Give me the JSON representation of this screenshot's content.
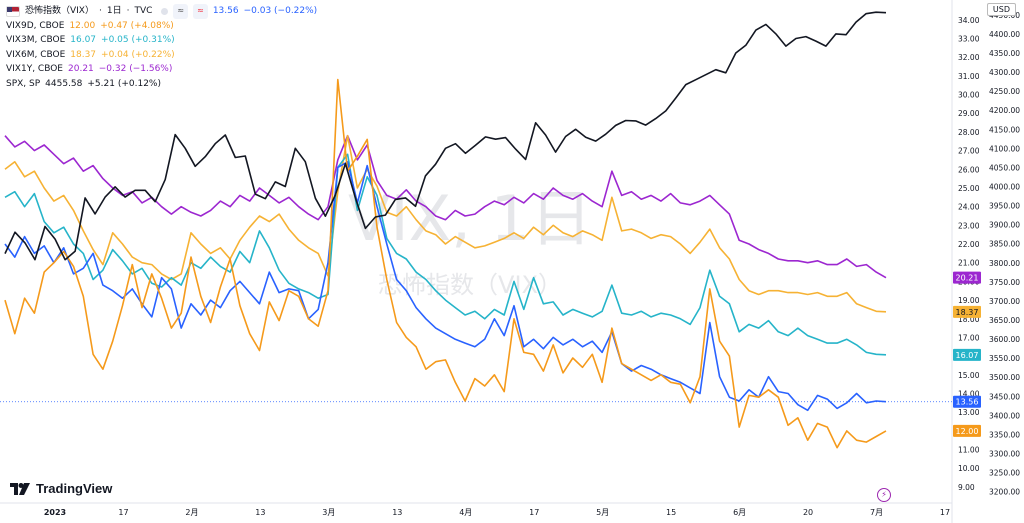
{
  "header": {
    "main": {
      "name": "恐怖指数（VIX）",
      "interval": "1日",
      "source": "TVC",
      "last": "13.56",
      "change": "−0.03 (−0.22%)",
      "color": "#2962ff"
    },
    "rows": [
      {
        "name": "VIX9D, CBOE",
        "last": "12.00",
        "change": "+0.47 (+4.08%)",
        "color": "#f59a1b"
      },
      {
        "name": "VIX3M, CBOE",
        "last": "16.07",
        "change": "+0.05 (+0.31%)",
        "color": "#26b4c9"
      },
      {
        "name": "VIX6M, CBOE",
        "last": "18.37",
        "change": "+0.04 (+0.22%)",
        "color": "#f6b234"
      },
      {
        "name": "VIX1Y, CBOE",
        "last": "20.21",
        "change": "−0.32 (−1.56%)",
        "color": "#9c27d0"
      },
      {
        "name": "SPX, SP",
        "last": "4455.58",
        "change": "+5.21 (+0.12%)",
        "color": "#131722"
      }
    ]
  },
  "watermark": {
    "line1": "VIX, 1日",
    "line2": "恐怖指数（VIX）"
  },
  "brand": "TradingView",
  "currency": "USD",
  "chart_data": {
    "type": "line",
    "x_ticks": [
      "2023",
      "17",
      "2月",
      "13",
      "3月",
      "13",
      "4月",
      "17",
      "5月",
      "15",
      "6月",
      "20",
      "7月",
      "17"
    ],
    "left_axis": {
      "ticks": [
        9.0,
        10.0,
        11.0,
        12.0,
        13.0,
        14.0,
        15.0,
        16.0,
        17.0,
        18.0,
        19.0,
        20.0,
        21.0,
        22.0,
        23.0,
        24.0,
        25.0,
        26.0,
        27.0,
        28.0,
        29.0,
        30.0,
        31.0,
        32.0,
        33.0,
        34.0
      ],
      "range": [
        8.3,
        34.9
      ]
    },
    "right_axis": {
      "ticks": [
        3200,
        3250,
        3300,
        3350,
        3400,
        3450,
        3500,
        3550,
        3600,
        3650,
        3700,
        3750,
        3800,
        3850,
        3900,
        3950,
        4000,
        4050,
        4100,
        4150,
        4200,
        4250,
        4300,
        4350,
        4400,
        4450
      ],
      "range": [
        3178,
        4481
      ]
    },
    "series": [
      {
        "name": "VIX1Y",
        "color": "#9c27d0",
        "label": "20.21",
        "values": [
          27.8,
          27.2,
          27.5,
          27.0,
          27.3,
          26.8,
          26.3,
          26.6,
          25.9,
          26.2,
          25.5,
          25.0,
          24.6,
          24.8,
          24.2,
          24.5,
          24.0,
          23.6,
          24.0,
          23.7,
          23.5,
          23.8,
          24.3,
          24.0,
          24.6,
          24.3,
          25.0,
          24.6,
          24.2,
          24.5,
          24.0,
          23.6,
          23.3,
          24.0,
          26.5,
          27.8,
          26.5,
          27.3,
          25.4,
          24.6,
          24.4,
          24.9,
          24.3,
          24.0,
          23.5,
          23.3,
          23.8,
          23.5,
          23.6,
          24.0,
          24.3,
          24.1,
          24.5,
          24.2,
          24.7,
          24.4,
          25.0,
          24.6,
          24.4,
          24.7,
          24.3,
          24.0,
          25.9,
          24.6,
          24.8,
          24.4,
          24.6,
          24.3,
          24.7,
          24.2,
          24.1,
          24.3,
          24.6,
          24.1,
          23.6,
          22.2,
          22.0,
          21.7,
          21.5,
          21.2,
          21.1,
          21.1,
          21.0,
          21.1,
          20.9,
          20.9,
          21.2,
          20.8,
          20.9,
          20.5,
          20.2
        ]
      },
      {
        "name": "VIX6M",
        "color": "#f6b234",
        "label": "18.37",
        "values": [
          26.0,
          26.4,
          25.6,
          25.9,
          25.0,
          24.3,
          24.6,
          23.8,
          22.7,
          21.7,
          20.9,
          22.6,
          22.0,
          21.3,
          21.0,
          20.9,
          20.4,
          20.1,
          20.4,
          22.6,
          22.0,
          21.5,
          21.8,
          21.2,
          22.2,
          22.9,
          23.5,
          23.2,
          23.6,
          22.8,
          22.2,
          21.8,
          21.5,
          20.3,
          24.8,
          27.8,
          25.0,
          26.0,
          25.1,
          23.7,
          23.5,
          24.0,
          23.3,
          22.7,
          22.5,
          22.0,
          22.4,
          22.1,
          21.8,
          21.9,
          22.1,
          22.3,
          22.6,
          22.3,
          22.9,
          22.5,
          23.0,
          22.6,
          22.4,
          22.7,
          22.5,
          22.2,
          24.5,
          22.7,
          22.8,
          22.6,
          22.3,
          22.5,
          22.4,
          22.0,
          21.5,
          22.1,
          22.8,
          21.8,
          21.2,
          20.1,
          19.5,
          19.3,
          19.5,
          19.5,
          19.4,
          19.4,
          19.3,
          19.4,
          19.2,
          19.2,
          19.4,
          18.8,
          18.6,
          18.4,
          18.37
        ]
      },
      {
        "name": "VIX3M",
        "color": "#26b4c9",
        "label": "16.07",
        "values": [
          24.5,
          24.8,
          24.0,
          24.7,
          23.2,
          22.6,
          22.9,
          22.0,
          21.5,
          20.1,
          20.6,
          21.7,
          21.1,
          20.4,
          20.7,
          19.9,
          19.7,
          20.2,
          19.8,
          21.0,
          20.7,
          21.3,
          20.8,
          20.5,
          21.6,
          21.0,
          22.7,
          21.8,
          20.6,
          19.9,
          19.6,
          19.4,
          19.1,
          19.3,
          26.1,
          26.8,
          23.8,
          25.6,
          24.6,
          22.3,
          21.5,
          21.2,
          20.5,
          20.1,
          19.5,
          19.0,
          18.6,
          18.2,
          18.4,
          18.0,
          18.5,
          18.2,
          20.0,
          18.5,
          20.2,
          18.8,
          18.9,
          18.2,
          18.5,
          18.3,
          18.1,
          18.4,
          19.8,
          18.3,
          18.2,
          18.4,
          18.1,
          18.3,
          18.2,
          18.0,
          17.7,
          18.6,
          20.6,
          19.2,
          18.8,
          17.3,
          17.7,
          17.5,
          17.9,
          17.3,
          17.1,
          17.5,
          17.1,
          16.9,
          16.7,
          16.7,
          16.9,
          16.6,
          16.2,
          16.1,
          16.07
        ]
      },
      {
        "name": "VIX",
        "color": "#2962ff",
        "label": "13.56",
        "values": [
          22.0,
          21.3,
          22.4,
          21.5,
          21.9,
          21.0,
          21.8,
          20.4,
          20.7,
          21.5,
          19.8,
          19.5,
          19.1,
          19.6,
          18.8,
          18.1,
          20.2,
          19.6,
          17.5,
          18.8,
          18.2,
          19.0,
          18.6,
          19.5,
          20.0,
          19.4,
          18.8,
          20.5,
          19.4,
          19.6,
          19.5,
          18.0,
          18.5,
          21.0,
          26.1,
          26.4,
          24.2,
          26.2,
          24.0,
          22.0,
          20.1,
          19.5,
          18.6,
          18.0,
          17.5,
          17.2,
          16.9,
          16.7,
          16.5,
          16.9,
          18.0,
          17.1,
          18.7,
          16.5,
          16.9,
          16.4,
          17.0,
          16.6,
          16.9,
          16.5,
          16.8,
          16.2,
          17.3,
          15.6,
          15.2,
          15.5,
          15.3,
          15.0,
          14.8,
          14.6,
          14.3,
          14.0,
          17.8,
          14.9,
          13.8,
          13.6,
          14.2,
          13.8,
          14.9,
          14.1,
          14.0,
          13.4,
          13.1,
          13.9,
          13.7,
          13.2,
          13.5,
          14.0,
          13.5,
          13.6,
          13.56
        ]
      },
      {
        "name": "VIX9D",
        "color": "#f59a1b",
        "label": "12.00",
        "values": [
          19.0,
          17.2,
          19.1,
          18.3,
          20.5,
          21.0,
          21.6,
          20.8,
          19.2,
          16.1,
          15.3,
          16.8,
          18.7,
          20.9,
          18.6,
          20.4,
          19.1,
          17.5,
          18.3,
          21.3,
          19.2,
          17.8,
          19.7,
          21.2,
          18.7,
          17.2,
          16.3,
          18.9,
          17.9,
          19.5,
          19.2,
          18.0,
          17.6,
          19.5,
          30.8,
          25.9,
          26.7,
          27.6,
          22.9,
          20.1,
          17.8,
          17.0,
          16.5,
          15.3,
          15.7,
          15.8,
          14.6,
          13.6,
          14.8,
          14.4,
          15.0,
          14.1,
          18.0,
          16.2,
          16.1,
          15.2,
          16.6,
          15.1,
          15.9,
          15.4,
          16.1,
          14.6,
          17.5,
          15.6,
          15.3,
          15.0,
          14.7,
          15.0,
          14.6,
          14.5,
          13.5,
          14.9,
          19.6,
          16.8,
          16.0,
          12.2,
          13.9,
          13.8,
          14.2,
          13.8,
          12.3,
          12.7,
          11.5,
          12.4,
          12.2,
          11.1,
          12.0,
          11.5,
          11.4,
          11.7,
          12.0
        ]
      },
      {
        "name": "SPX",
        "color": "#131722",
        "label": "",
        "values": [
          3824,
          3880,
          3852,
          3808,
          3895,
          3862,
          3808,
          3830,
          3970,
          3928,
          3972,
          3999,
          3972,
          3990,
          3990,
          3960,
          4018,
          4136,
          4100,
          4053,
          4078,
          4112,
          4135,
          4076,
          4080,
          3980,
          3968,
          4012,
          4000,
          4100,
          4065,
          3969,
          3922,
          3978,
          4060,
          3970,
          3890,
          3920,
          3925,
          3966,
          3970,
          3948,
          4028,
          4058,
          4100,
          4112,
          4087,
          4108,
          4130,
          4124,
          4128,
          4098,
          4071,
          4167,
          4135,
          4090,
          4131,
          4150,
          4129,
          4119,
          4137,
          4160,
          4173,
          4172,
          4161,
          4178,
          4198,
          4232,
          4267,
          4280,
          4293,
          4306,
          4298,
          4350,
          4370,
          4410,
          4425,
          4400,
          4368,
          4388,
          4393,
          4381,
          4368,
          4400,
          4398,
          4431,
          4453,
          4457,
          4455.58
        ]
      }
    ]
  }
}
